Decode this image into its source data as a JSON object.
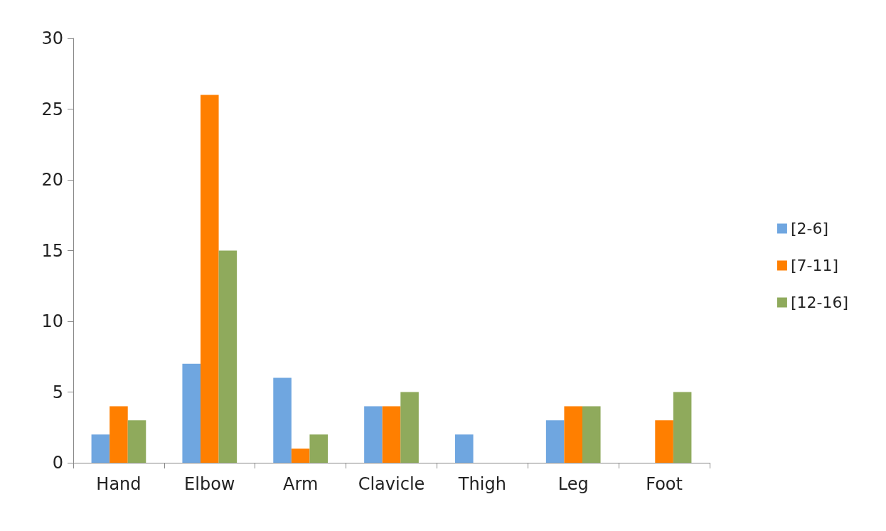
{
  "chart_data": {
    "type": "bar",
    "categories": [
      "Hand",
      "Elbow",
      "Arm",
      "Clavicle",
      "Thigh",
      "Leg",
      "Foot"
    ],
    "series": [
      {
        "name": "[2-6]",
        "color": "#6fa6e0",
        "values": [
          2,
          7,
          6,
          4,
          2,
          3,
          0
        ]
      },
      {
        "name": "[7-11]",
        "color": "#ff7f00",
        "values": [
          4,
          26,
          1,
          4,
          0,
          4,
          3
        ]
      },
      {
        "name": "[12-16]",
        "color": "#8faa5c",
        "values": [
          3,
          15,
          2,
          5,
          0,
          4,
          5
        ]
      }
    ],
    "ylim": [
      0,
      30
    ],
    "yticks": [
      0,
      5,
      10,
      15,
      20,
      25,
      30
    ],
    "grid": false,
    "legend": "right"
  }
}
